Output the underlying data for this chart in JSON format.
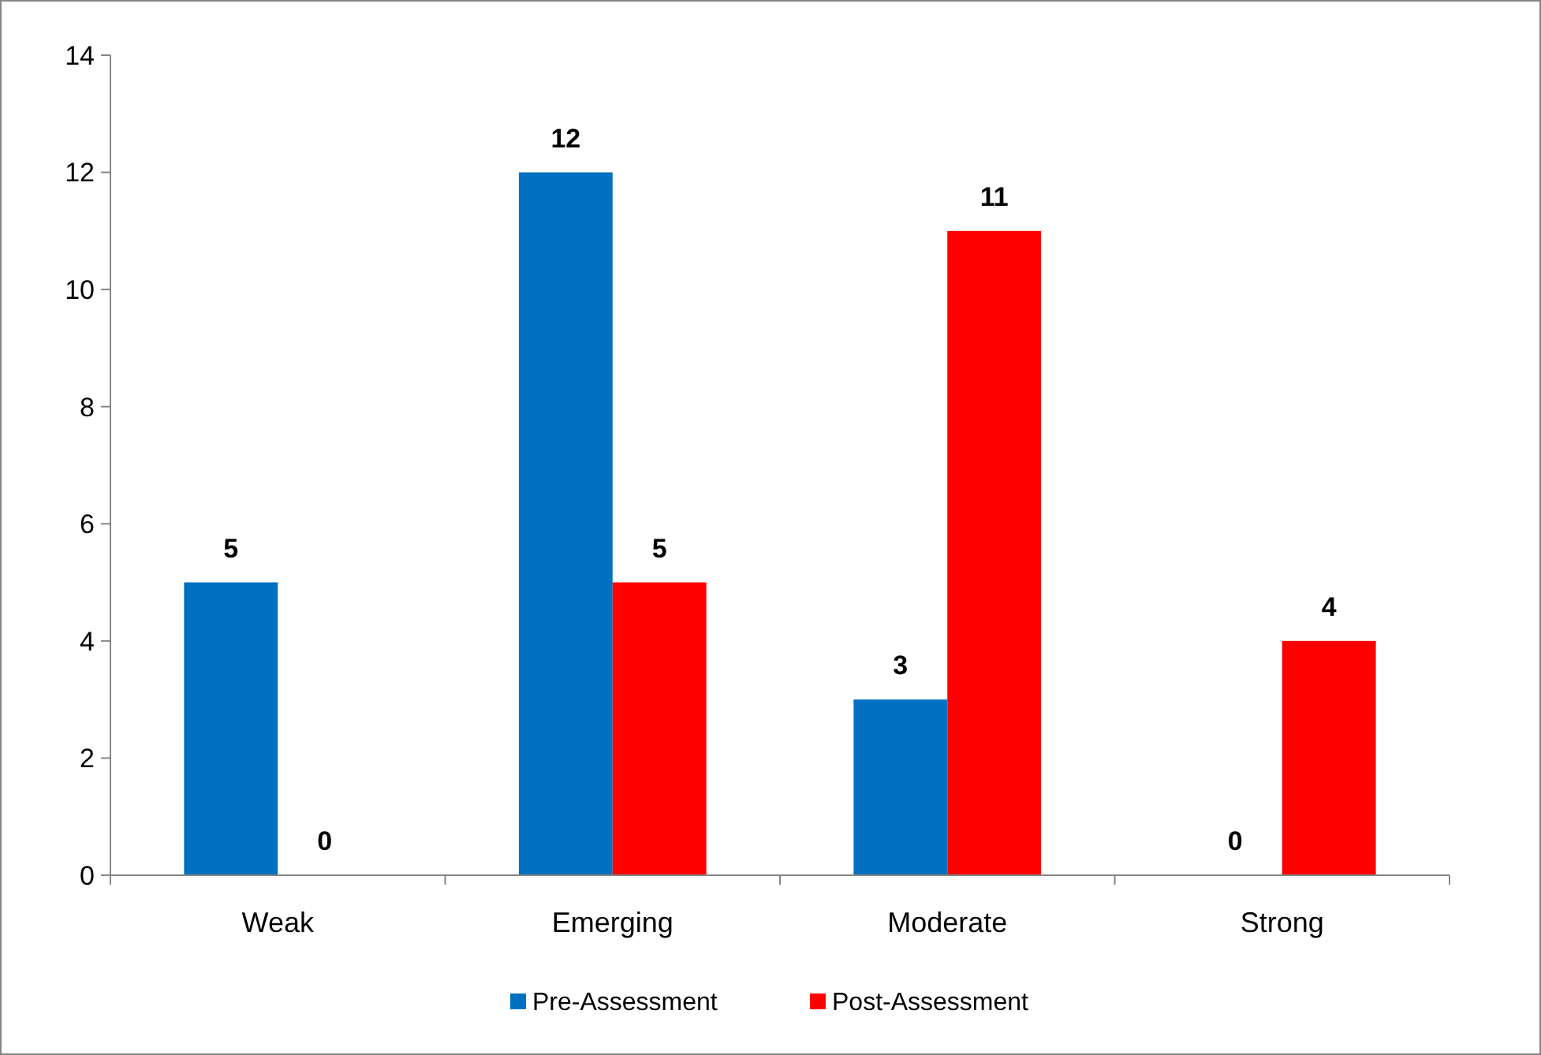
{
  "chart_data": {
    "type": "bar",
    "categories": [
      "Weak",
      "Emerging",
      "Moderate",
      "Strong"
    ],
    "series": [
      {
        "name": "Pre-Assessment",
        "color": "#0070c0",
        "values": [
          5,
          12,
          3,
          0
        ]
      },
      {
        "name": "Post-Assessment",
        "color": "#ff0000",
        "values": [
          0,
          5,
          11,
          4
        ]
      }
    ],
    "ylim": [
      0,
      14
    ],
    "yticks": [
      0,
      2,
      4,
      6,
      8,
      10,
      12,
      14
    ],
    "grid": false,
    "legend": "bottom",
    "data_labels": true
  }
}
